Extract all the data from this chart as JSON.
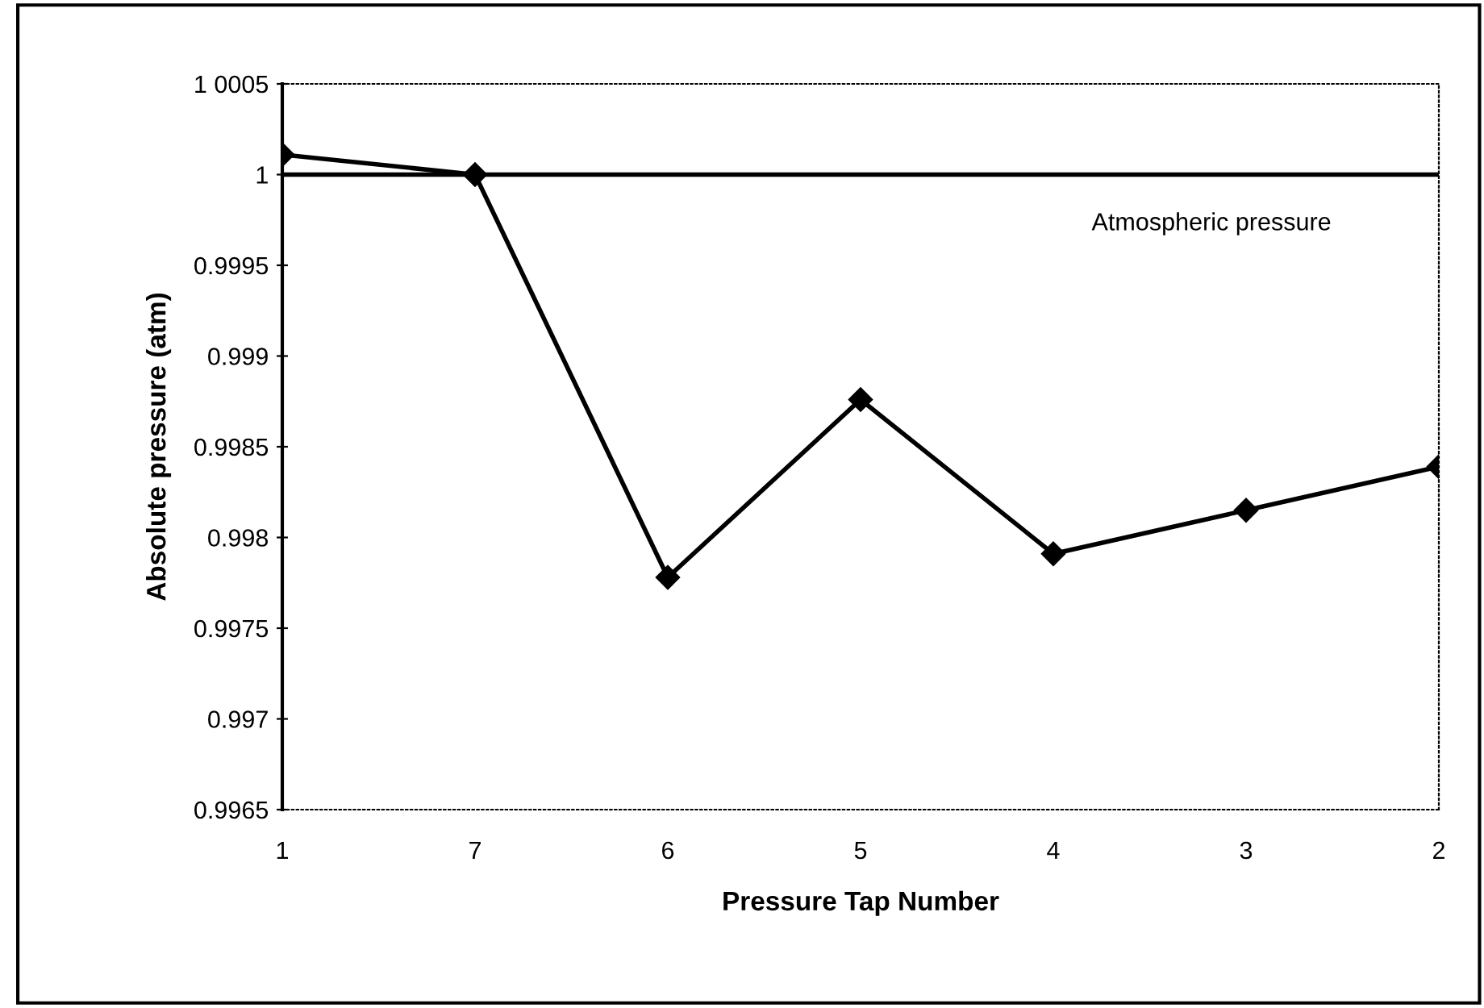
{
  "chart_data": {
    "type": "line",
    "xlabel": "Pressure Tap Number",
    "ylabel": "Absolute pressure (atm)",
    "categories": [
      "1",
      "7",
      "6",
      "5",
      "4",
      "3",
      "2"
    ],
    "series": [
      {
        "color": "#000000",
        "values": [
          1.00011,
          1.0,
          0.99778,
          0.99876,
          0.99791,
          0.99815,
          0.99839
        ]
      }
    ],
    "ylim": [
      0.9965,
      1.0005
    ],
    "yticks": [
      0.9965,
      0.997,
      0.9975,
      0.998,
      0.9985,
      0.999,
      0.9995,
      1,
      {
        "value": 1.0005,
        "label": "1 0005"
      }
    ],
    "ref_lines": [
      {
        "axis": "y",
        "value": 1,
        "label": "Atmospheric pressure",
        "color": "#000000"
      }
    ],
    "marker": "diamond",
    "line_style": "solid",
    "grid": false
  }
}
